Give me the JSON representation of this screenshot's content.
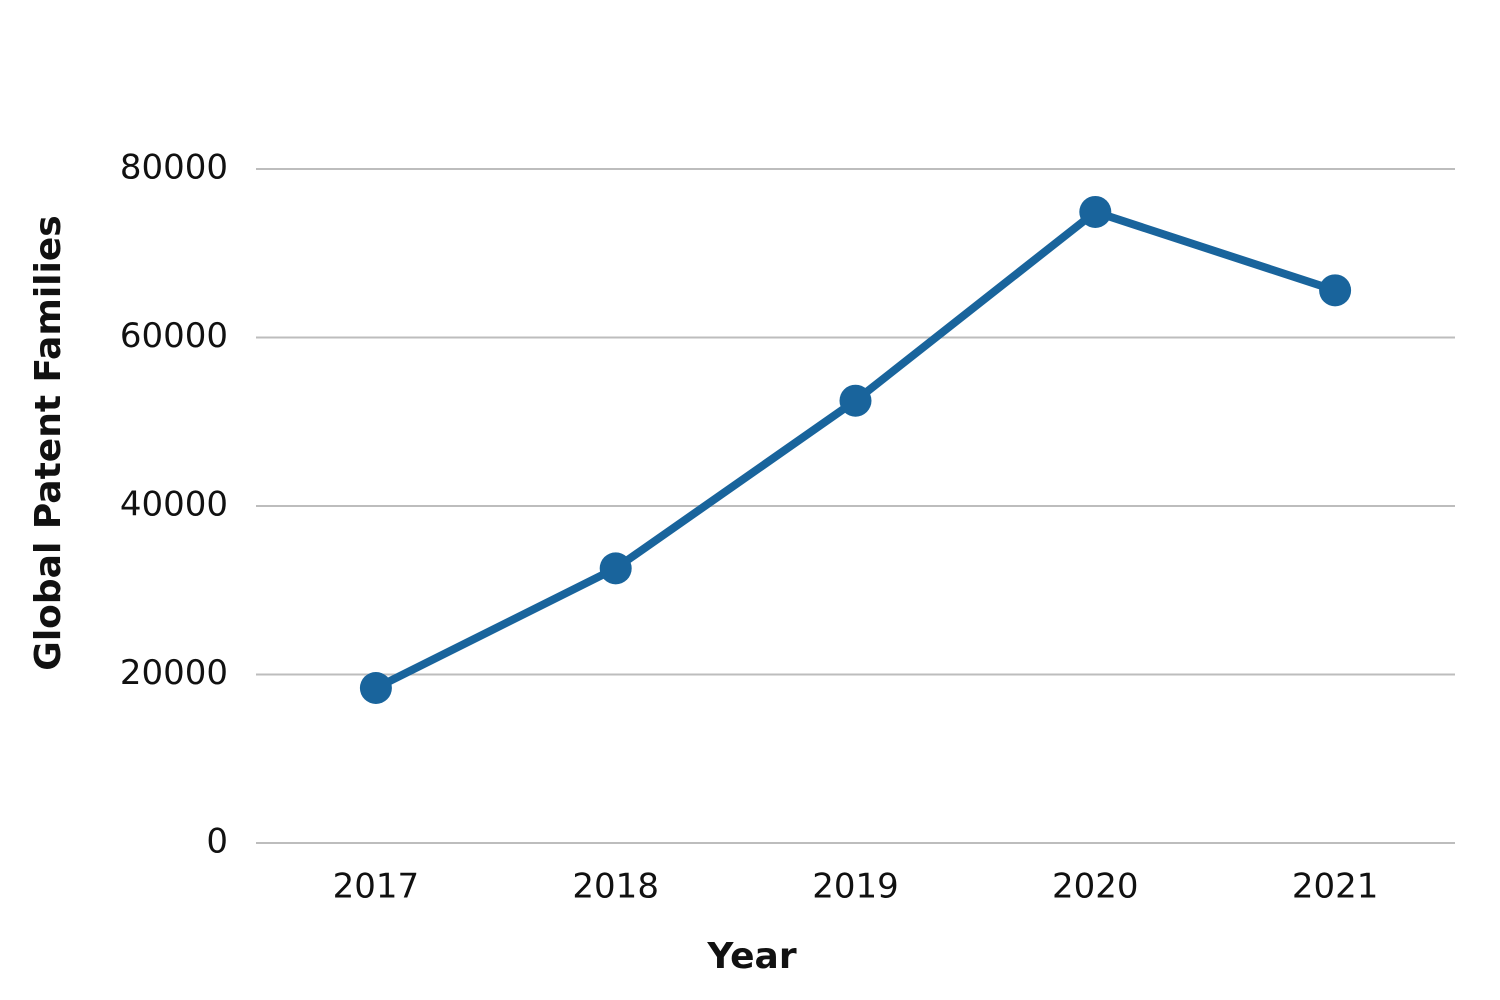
{
  "chart_data": {
    "type": "line",
    "x_label": "Year",
    "y_label": "Global Patent Families",
    "categories": [
      "2017",
      "2018",
      "2019",
      "2020",
      "2021"
    ],
    "series": [
      {
        "name": "Global Patent Families",
        "color": "#19649c",
        "values": [
          18400,
          32600,
          52500,
          74900,
          65600
        ]
      }
    ],
    "ylim": [
      0,
      80000
    ],
    "yticks": [
      0,
      20000,
      40000,
      60000,
      80000
    ],
    "grid": true
  }
}
